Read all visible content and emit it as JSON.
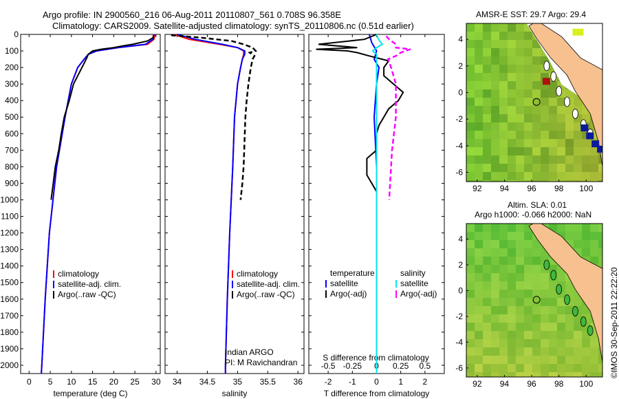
{
  "header": {
    "line1": "Argo profile: IN 2900560_216 06-Aug-2011 20110807_561 0.708S 96.358E",
    "line2": "Climatology: CARS2009. Satellite-adjusted climatology: synTS_20110806.nc (0.51d earlier)"
  },
  "map_top": {
    "title": "AMSR-E SST: 29.7 Argo: 29.4"
  },
  "map_bottom": {
    "title1": "Altim. SLA: 0.01",
    "title2": "Argo h1000: -0.066 h2000: NaN"
  },
  "footer_stamp": "©IMOS 30-Sep-2011 22:22:20",
  "colors": {
    "climatology": "#ff0000",
    "satellite": "#0000ff",
    "argo": "#000000",
    "salinity_sat": "#00e5ee",
    "salinity_argo": "#ff00ff",
    "land": "#f7c08f",
    "ocean": "#44c044"
  },
  "chart_data": [
    {
      "type": "line",
      "xlabel": "temperature (deg C)",
      "ylabel": "",
      "xlim": [
        -2,
        31
      ],
      "ylim": [
        2050,
        0
      ],
      "xticks": [
        0,
        5,
        10,
        15,
        20,
        25,
        30
      ],
      "yticks": [
        0,
        100,
        200,
        300,
        400,
        500,
        600,
        700,
        800,
        900,
        1000,
        1100,
        1200,
        1300,
        1400,
        1500,
        1600,
        1700,
        1800,
        1900,
        2000
      ],
      "legend": [
        "climatology",
        "satellite-adj. clim.",
        "Argo(..raw -QC)"
      ],
      "series": [
        {
          "name": "climatology",
          "depth": [
            0,
            30,
            60,
            80,
            100,
            120,
            150,
            200,
            300,
            500,
            800,
            1200,
            1600,
            2000,
            2050
          ],
          "values": [
            29.8,
            29.5,
            28,
            21,
            16,
            14,
            13,
            11.5,
            10,
            8.5,
            6.5,
            4.8,
            3.8,
            3,
            2.9
          ]
        },
        {
          "name": "satellite-adj. clim.",
          "depth": [
            0,
            30,
            60,
            80,
            100,
            120,
            150,
            200,
            300,
            500,
            800,
            1200,
            1600,
            2000,
            2050
          ],
          "values": [
            29.5,
            29.3,
            27.5,
            21,
            16,
            14,
            13,
            11.5,
            10,
            8.5,
            6.5,
            4.8,
            3.8,
            3,
            2.9
          ]
        },
        {
          "name": "Argo(..raw -QC)",
          "depth": [
            5,
            20,
            40,
            60,
            70,
            80,
            90,
            100,
            120,
            150,
            200,
            300,
            400,
            500,
            600,
            700,
            800,
            900,
            1000
          ],
          "values": [
            29.4,
            29.3,
            28,
            24.5,
            22,
            20,
            17,
            15,
            14,
            13.5,
            12.5,
            10.5,
            9.5,
            8.3,
            7.6,
            7,
            6.2,
            5.7,
            5.2
          ]
        }
      ]
    },
    {
      "type": "line",
      "xlabel": "salinity",
      "xlim": [
        33.8,
        36.1
      ],
      "ylim": [
        2050,
        0
      ],
      "xticks": [
        34,
        34.5,
        35,
        35.5,
        36
      ],
      "legend": [
        "climatology",
        "satellite-adj. clim.",
        "Argo(..raw -QC)"
      ],
      "annotation": [
        "Indian ARGO",
        "PI: M Ravichandran"
      ],
      "series": [
        {
          "name": "climatology",
          "depth": [
            0,
            30,
            60,
            80,
            100,
            120,
            150,
            200,
            300,
            500,
            800,
            1200,
            1600,
            2000,
            2050
          ],
          "values": [
            33.95,
            34.2,
            34.7,
            35.0,
            35.1,
            35.1,
            35.08,
            35.05,
            35.0,
            34.95,
            34.92,
            34.87,
            34.83,
            34.8,
            34.8
          ]
        },
        {
          "name": "satellite-adj. clim.",
          "depth": [
            0,
            30,
            60,
            80,
            100,
            120,
            150,
            200,
            300,
            500,
            800,
            1200,
            1600,
            2000,
            2050
          ],
          "values": [
            34.0,
            34.3,
            34.75,
            35.0,
            35.12,
            35.12,
            35.08,
            35.05,
            35.0,
            34.95,
            34.92,
            34.87,
            34.83,
            34.8,
            34.8
          ]
        },
        {
          "name": "Argo(..raw -QC)",
          "depth": [
            5,
            20,
            40,
            60,
            80,
            100,
            110,
            130,
            150,
            200,
            300,
            400,
            500,
            600,
            700,
            800,
            900,
            1000
          ],
          "values": [
            33.9,
            34.4,
            34.9,
            35.1,
            35.25,
            35.3,
            35.2,
            35.28,
            35.25,
            35.22,
            35.18,
            35.15,
            35.13,
            35.12,
            35.11,
            35.1,
            35.08,
            35.05
          ]
        }
      ]
    },
    {
      "type": "line",
      "xlabel": "T difference from climatology",
      "xlabel_top": "S difference from climatology",
      "xlim": [
        -2.8,
        2.8
      ],
      "ylim": [
        2050,
        0
      ],
      "xticks": [
        -2,
        -1,
        0,
        1,
        2
      ],
      "xticks_top": [
        "-0.5",
        "-0.25",
        "0",
        "0.25",
        "0.5"
      ],
      "legend_headers": [
        "temperature",
        "salinity"
      ],
      "legend": [
        "satellite",
        "Argo(-adj)",
        "satellite",
        "Argo(-adj)"
      ],
      "series": [
        {
          "name": "T satellite",
          "depth": [
            0,
            50,
            100,
            150,
            200,
            300,
            500,
            800,
            1000,
            1500,
            2000,
            2050
          ],
          "values": [
            -0.3,
            -0.2,
            0,
            -0.1,
            0.1,
            0,
            -0.1,
            0,
            0,
            0,
            0,
            0
          ]
        },
        {
          "name": "T Argo(-adj)",
          "depth": [
            0,
            30,
            60,
            80,
            90,
            100,
            110,
            130,
            160,
            200,
            250,
            300,
            350,
            400,
            450,
            500,
            550,
            600,
            700,
            750,
            800,
            850,
            900,
            950,
            1000
          ],
          "values": [
            0,
            -0.5,
            -2.4,
            -0.8,
            -2.5,
            -1.2,
            -0.8,
            -0.3,
            0.5,
            0.3,
            0.3,
            0.7,
            1.1,
            0.9,
            0.5,
            0.3,
            0.1,
            0.0,
            0.0,
            -0.4,
            -0.4,
            -0.4,
            -0.2,
            0,
            0
          ]
        },
        {
          "name": "S satellite",
          "depth": [
            0,
            30,
            60,
            80,
            100,
            120,
            150,
            200,
            300,
            500,
            1000,
            1500,
            2000,
            2050
          ],
          "values": [
            0,
            0.02,
            0.06,
            0,
            -0.04,
            0,
            0,
            0,
            0,
            0,
            0,
            0,
            0,
            0
          ]
        },
        {
          "name": "S Argo(-adj)",
          "depth": [
            10,
            30,
            60,
            80,
            90,
            100,
            110,
            130,
            150,
            200,
            300,
            400,
            500,
            600,
            700,
            800,
            900,
            1000
          ],
          "values": [
            0.1,
            0.13,
            0.2,
            0.2,
            0.35,
            0.3,
            0.25,
            0.2,
            0.12,
            0.15,
            0.2,
            0.2,
            0.2,
            0.18,
            0.16,
            0.15,
            0.14,
            0.13
          ]
        }
      ]
    },
    {
      "type": "heatmap",
      "title": "AMSR-E SST: 29.7 Argo: 29.4",
      "xlim": [
        91.2,
        101.2
      ],
      "ylim": [
        -6.7,
        5.2
      ],
      "xticks": [
        92,
        94,
        96,
        98,
        100
      ],
      "yticks": [
        4,
        2,
        0,
        -2,
        -4,
        -6
      ],
      "argo_position": {
        "lon": 96.358,
        "lat": -0.708
      }
    },
    {
      "type": "heatmap",
      "title": "Altim. SLA: 0.01 / Argo h1000: -0.066 h2000: NaN",
      "xlim": [
        91.2,
        101.2
      ],
      "ylim": [
        -6.7,
        5.2
      ],
      "xticks": [
        92,
        94,
        96,
        98,
        100
      ],
      "yticks": [
        4,
        2,
        0,
        -2,
        -4,
        -6
      ],
      "argo_position": {
        "lon": 96.358,
        "lat": -0.708
      }
    }
  ]
}
